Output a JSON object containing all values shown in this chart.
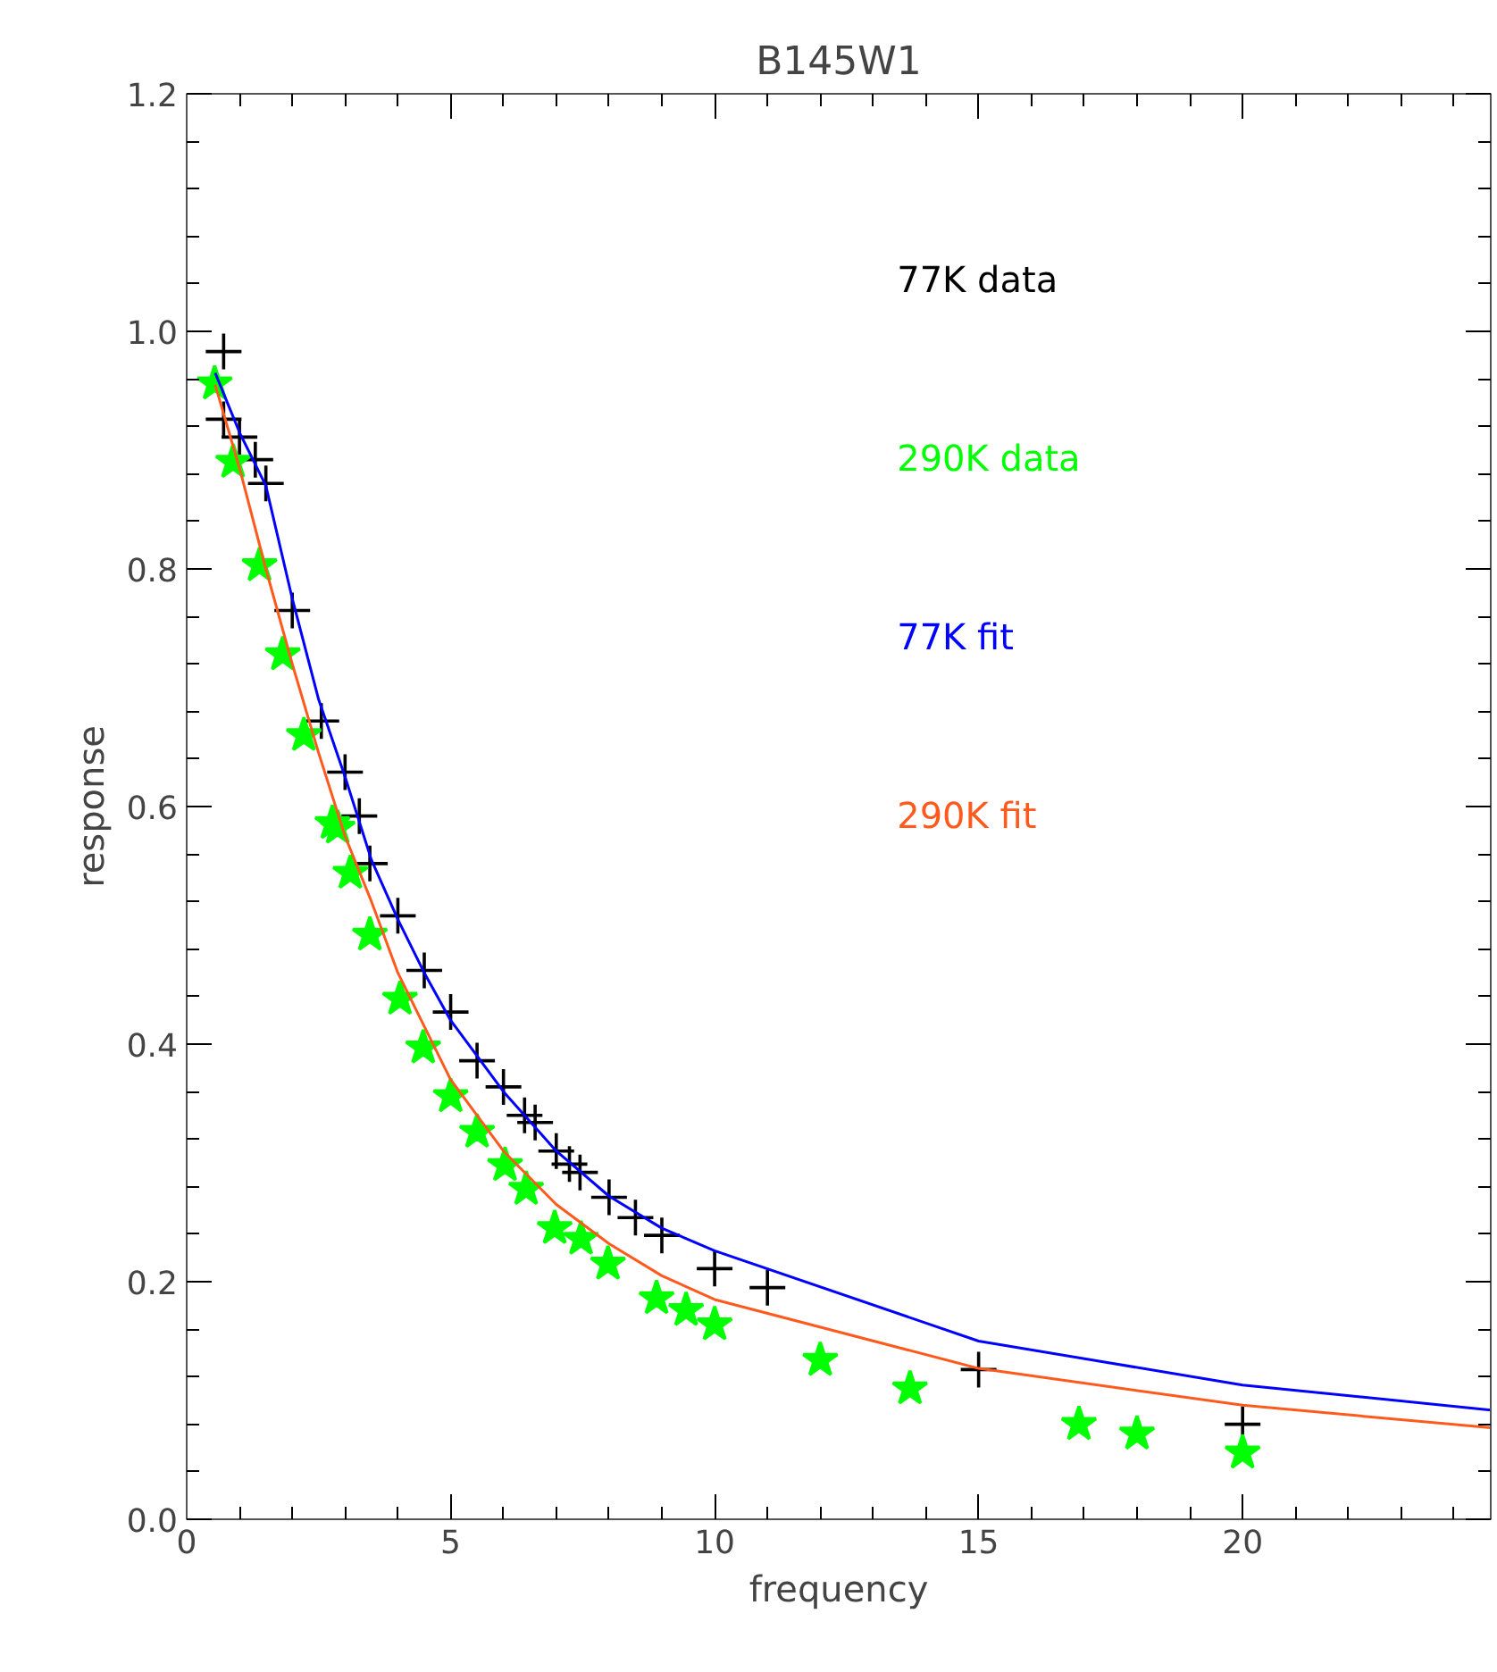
{
  "chart_data": {
    "type": "scatter",
    "title": "B145W1",
    "xlabel": "frequency",
    "ylabel": "response",
    "xlim": [
      0,
      24.7
    ],
    "ylim": [
      0,
      1.2
    ],
    "xticks": [
      0,
      5,
      10,
      15,
      20
    ],
    "yticks": [
      {
        "value": 0,
        "label": "0.0"
      },
      {
        "value": 0.2,
        "label": "0.2"
      },
      {
        "value": 0.4,
        "label": "0.4"
      },
      {
        "value": 0.6,
        "label": "0.6"
      },
      {
        "value": 0.8,
        "label": "0.8"
      },
      {
        "value": 1.0,
        "label": "1.0"
      },
      {
        "value": 1.2,
        "label": "1.2"
      }
    ],
    "grid": false,
    "legend": "right",
    "series": [
      {
        "name": "77K data",
        "marker": "cross",
        "color": "#000000",
        "x": [
          0.7,
          0.7,
          1.0,
          1.3,
          1.5,
          2.0,
          2.55,
          3.0,
          3.27,
          3.47,
          4.0,
          4.5,
          5.0,
          5.5,
          6.0,
          6.4,
          6.6,
          7.0,
          7.25,
          7.45,
          8.0,
          8.5,
          9.0,
          10,
          11,
          15,
          20
        ],
        "values": [
          0.983,
          0.926,
          0.911,
          0.892,
          0.872,
          0.765,
          0.672,
          0.629,
          0.592,
          0.552,
          0.508,
          0.462,
          0.427,
          0.386,
          0.364,
          0.34,
          0.334,
          0.31,
          0.299,
          0.292,
          0.271,
          0.254,
          0.239,
          0.211,
          0.195,
          0.126,
          0.08
        ]
      },
      {
        "name": "290K data",
        "marker": "star",
        "color": "#00ff00",
        "x": [
          0.53,
          0.88,
          1.38,
          1.82,
          2.22,
          2.76,
          2.86,
          3.1,
          3.47,
          4.04,
          4.48,
          5.0,
          5.5,
          6.03,
          6.43,
          6.97,
          7.47,
          7.98,
          8.9,
          9.46,
          10,
          12,
          13.7,
          16.9,
          18,
          20
        ],
        "values": [
          0.956,
          0.89,
          0.803,
          0.728,
          0.66,
          0.586,
          0.582,
          0.544,
          0.492,
          0.438,
          0.397,
          0.356,
          0.326,
          0.298,
          0.278,
          0.245,
          0.236,
          0.215,
          0.186,
          0.176,
          0.164,
          0.134,
          0.11,
          0.08,
          0.072,
          0.056
        ]
      },
      {
        "name": "77K fit",
        "type": "line",
        "marker": "none",
        "color": "#0000ff",
        "x": [
          0.54,
          1,
          1.5,
          2,
          2.5,
          3,
          3.5,
          4,
          4.5,
          5,
          6,
          7,
          8,
          9,
          10,
          15,
          20,
          24.7
        ],
        "values": [
          0.965,
          0.915,
          0.87,
          0.775,
          0.69,
          0.625,
          0.555,
          0.505,
          0.46,
          0.42,
          0.36,
          0.31,
          0.272,
          0.245,
          0.226,
          0.15,
          0.113,
          0.092
        ]
      },
      {
        "name": "290K fit",
        "type": "line",
        "marker": "none",
        "color": "#ff5a1e",
        "x": [
          0.54,
          1,
          1.5,
          2,
          2.5,
          3,
          3.5,
          4,
          4.5,
          5,
          6,
          7,
          8,
          9,
          10,
          15,
          20,
          24.7
        ],
        "values": [
          0.955,
          0.885,
          0.8,
          0.72,
          0.645,
          0.575,
          0.52,
          0.46,
          0.415,
          0.37,
          0.31,
          0.265,
          0.232,
          0.205,
          0.185,
          0.127,
          0.096,
          0.077
        ]
      }
    ]
  }
}
